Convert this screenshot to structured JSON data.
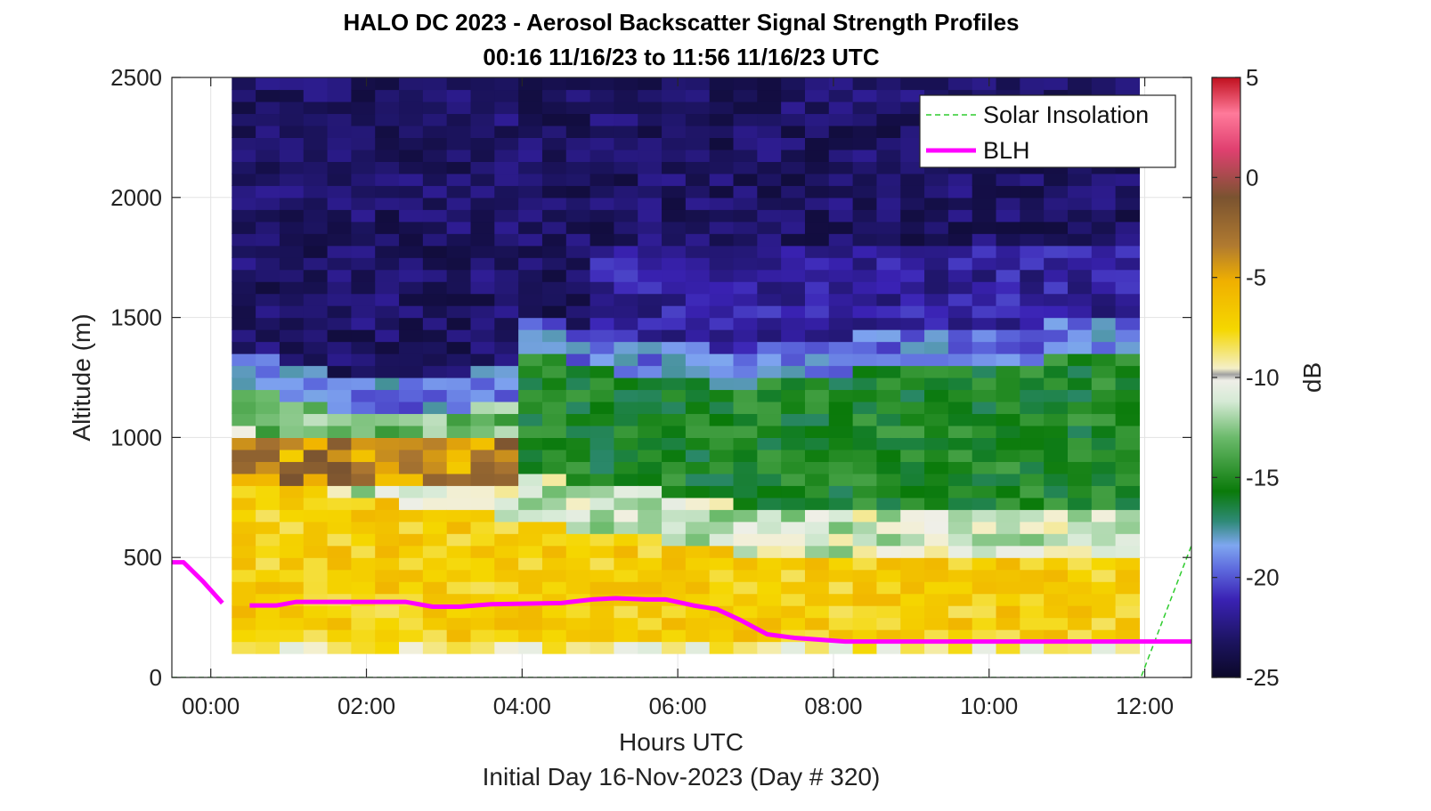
{
  "chart_data": {
    "type": "heatmap",
    "title": "HALO DC 2023 - Aerosol Backscatter Signal Strength Profiles",
    "subtitle": "00:16 11/16/23 to 11:56 11/16/23  UTC",
    "xlabel": "Hours UTC",
    "footnote": "Initial Day 16-Nov-2023 (Day # 320)",
    "ylabel": "Altitude (m)",
    "colorbar_label": "dB",
    "xlim": [
      -0.5,
      12.6
    ],
    "ylim": [
      0,
      2500
    ],
    "clim": [
      -25,
      5
    ],
    "x_ticks": [
      0,
      2,
      4,
      6,
      8,
      10,
      12
    ],
    "x_tick_labels": [
      "00:00",
      "02:00",
      "04:00",
      "06:00",
      "08:00",
      "10:00",
      "12:00"
    ],
    "y_ticks": [
      0,
      500,
      1000,
      1500,
      2000,
      2500
    ],
    "y_tick_labels": [
      "0",
      "500",
      "1000",
      "1500",
      "2000",
      "2500"
    ],
    "colorbar_ticks": [
      5,
      0,
      -5,
      -10,
      -15,
      -20,
      -25
    ],
    "colorbar_tick_labels": [
      "5",
      "0",
      "-5",
      "-10",
      "-15",
      "-20",
      "-25"
    ],
    "grid": true,
    "legend_position": "top-right",
    "legend": [
      "Solar Insolation",
      "BLH"
    ],
    "heatmap": {
      "x_start": 0.27,
      "x_end": 11.93,
      "y_start": 100,
      "y_end": 2500,
      "row_height": 50,
      "n_columns": 38,
      "regime_notes": {
        "aloft_value_db": -23,
        "residual_layer_top_m": [
          1250,
          1250,
          1200,
          1200,
          1150,
          1150,
          1150,
          1150,
          1150,
          1150,
          1200,
          1200,
          1400,
          1400,
          1350,
          1350,
          1300,
          1300,
          1300,
          1300,
          1250,
          1250,
          1300,
          1300,
          1300,
          1300,
          1350,
          1350,
          1350,
          1350,
          1350,
          1350,
          1350,
          1350,
          1400,
          1400,
          1400,
          1400
        ]
      }
    },
    "series": [
      {
        "name": "Solar Insolation",
        "color": "#2ecc2e",
        "style": "dashed",
        "x": [
          -0.5,
          11.95,
          12.6
        ],
        "y": [
          0,
          0,
          550
        ]
      },
      {
        "name": "BLH",
        "color": "#ff00ff",
        "style": "solid",
        "segments": [
          {
            "x": [
              -0.5,
              -0.35,
              -0.1,
              0.15
            ],
            "y": [
              480,
              480,
              400,
              310
            ]
          },
          {
            "x": [
              0.5,
              0.85,
              1.1,
              2.5,
              2.85,
              3.2,
              3.6,
              4.5,
              4.9,
              5.2,
              5.6,
              5.85,
              6.2,
              6.5,
              6.8,
              7.15,
              7.5,
              8.15,
              12.6
            ],
            "y": [
              300,
              300,
              315,
              315,
              295,
              295,
              305,
              310,
              325,
              330,
              325,
              325,
              300,
              285,
              240,
              180,
              165,
              150,
              150
            ]
          }
        ]
      }
    ]
  }
}
